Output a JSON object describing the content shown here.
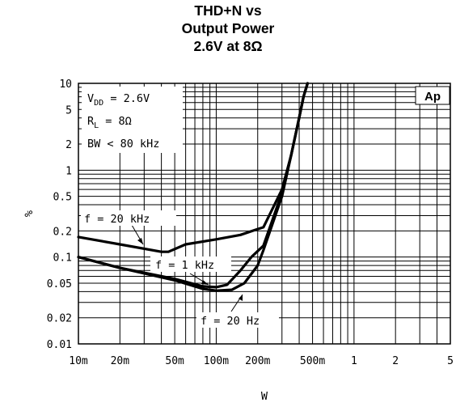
{
  "chart_data": {
    "type": "line",
    "title": [
      "THD+N vs",
      "Output Power",
      "2.6V at 8Ω"
    ],
    "xlabel": "W",
    "ylabel": "%",
    "xscale": "log",
    "yscale": "log",
    "xlim": [
      0.01,
      5
    ],
    "ylim": [
      0.01,
      10
    ],
    "grid": true,
    "x_ticks": [
      {
        "value": 0.01,
        "label": "10m"
      },
      {
        "value": 0.02,
        "label": "20m"
      },
      {
        "value": 0.05,
        "label": "50m"
      },
      {
        "value": 0.1,
        "label": "100m"
      },
      {
        "value": 0.2,
        "label": "200m"
      },
      {
        "value": 0.5,
        "label": "500m"
      },
      {
        "value": 1,
        "label": "1"
      },
      {
        "value": 2,
        "label": "2"
      },
      {
        "value": 5,
        "label": "5"
      }
    ],
    "y_ticks": [
      {
        "value": 0.01,
        "label": "0.01"
      },
      {
        "value": 0.02,
        "label": "0.02"
      },
      {
        "value": 0.05,
        "label": "0.05"
      },
      {
        "value": 0.1,
        "label": "0.1"
      },
      {
        "value": 0.2,
        "label": "0.2"
      },
      {
        "value": 0.5,
        "label": "0.5"
      },
      {
        "value": 1,
        "label": "1"
      },
      {
        "value": 2,
        "label": "2"
      },
      {
        "value": 5,
        "label": "5"
      },
      {
        "value": 10,
        "label": "10"
      }
    ],
    "conditions": [
      "V_DD = 2.6V",
      "R_L = 8Ω",
      "BW < 80 kHz"
    ],
    "badge": "Ap",
    "series": [
      {
        "name": "f = 20 kHz",
        "points": [
          [
            0.01,
            0.17
          ],
          [
            0.02,
            0.14
          ],
          [
            0.04,
            0.115
          ],
          [
            0.045,
            0.115
          ],
          [
            0.06,
            0.14
          ],
          [
            0.1,
            0.16
          ],
          [
            0.15,
            0.18
          ],
          [
            0.2,
            0.21
          ],
          [
            0.22,
            0.22
          ],
          [
            0.3,
            0.6
          ],
          [
            0.35,
            1.5
          ],
          [
            0.4,
            4
          ],
          [
            0.43,
            7
          ],
          [
            0.46,
            10
          ]
        ]
      },
      {
        "name": "f = 1 kHz",
        "points": [
          [
            0.01,
            0.1
          ],
          [
            0.02,
            0.075
          ],
          [
            0.05,
            0.056
          ],
          [
            0.08,
            0.046
          ],
          [
            0.1,
            0.045
          ],
          [
            0.12,
            0.048
          ],
          [
            0.15,
            0.07
          ],
          [
            0.18,
            0.1
          ],
          [
            0.22,
            0.135
          ],
          [
            0.3,
            0.55
          ],
          [
            0.35,
            1.5
          ],
          [
            0.4,
            4
          ],
          [
            0.43,
            7
          ],
          [
            0.46,
            10
          ]
        ]
      },
      {
        "name": "f = 20 Hz",
        "points": [
          [
            0.01,
            0.1
          ],
          [
            0.02,
            0.075
          ],
          [
            0.05,
            0.054
          ],
          [
            0.08,
            0.043
          ],
          [
            0.1,
            0.041
          ],
          [
            0.13,
            0.042
          ],
          [
            0.16,
            0.05
          ],
          [
            0.2,
            0.08
          ],
          [
            0.22,
            0.12
          ],
          [
            0.3,
            0.5
          ],
          [
            0.35,
            1.5
          ],
          [
            0.4,
            4
          ],
          [
            0.43,
            7
          ],
          [
            0.46,
            10
          ]
        ]
      }
    ]
  }
}
